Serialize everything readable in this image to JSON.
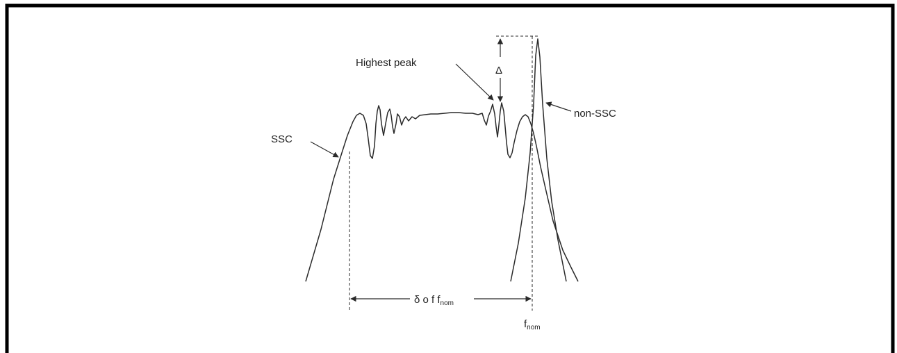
{
  "diagram": {
    "labels": {
      "highest_peak": "Highest peak",
      "delta_symbol": "Δ",
      "ssc": "SSC",
      "non_ssc": "non-SSC",
      "offset_prefix": "δ o f f",
      "offset_subscript": "nom",
      "fnom_main": "f",
      "fnom_subscript": "nom"
    },
    "colors": {
      "frame": "#000000",
      "line": "#2a2a2a",
      "background": "#ffffff"
    }
  }
}
